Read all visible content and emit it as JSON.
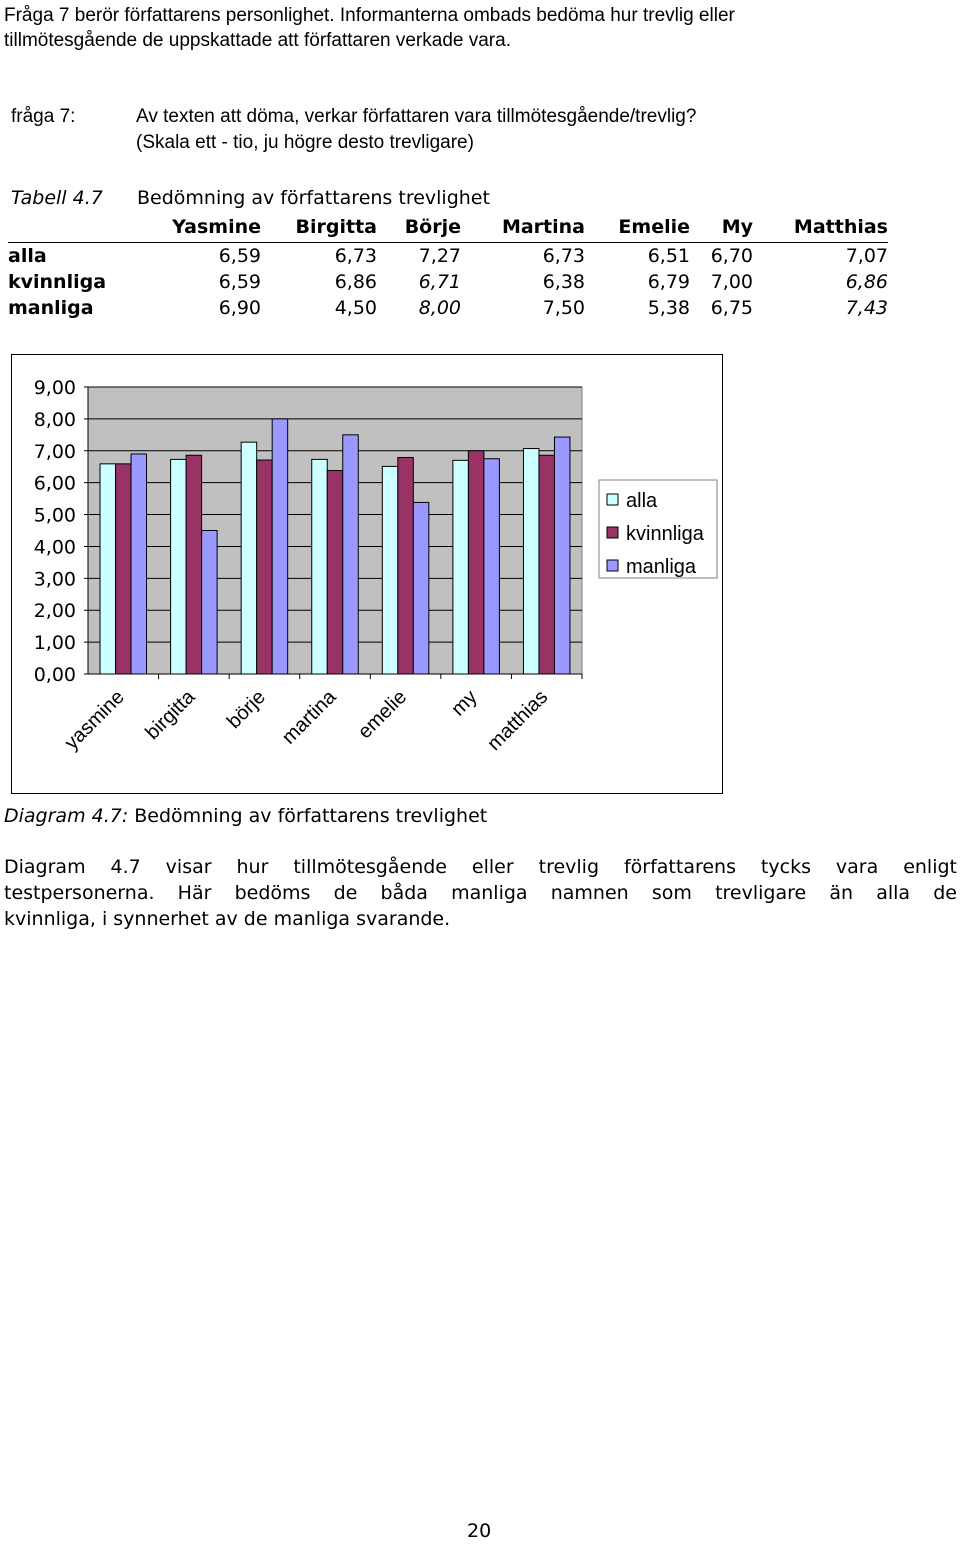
{
  "intro": {
    "line1": "Fråga 7 berör författarens personlighet. Informanterna ombads bedöma hur trevlig eller",
    "line2": "tillmötesgående de uppskattade att författaren verkade vara."
  },
  "question": {
    "label": "fråga 7:",
    "line1": "Av texten att döma, verkar författaren vara tillmötesgående/trevlig?",
    "line2": "(Skala ett - tio, ju högre desto trevligare)"
  },
  "table": {
    "label": "Tabell 4.7",
    "title": "Bedömning av författarens trevlighet",
    "headers": [
      "Yasmine",
      "Birgitta",
      "Börje",
      "Martina",
      "Emelie",
      "My",
      "Matthias"
    ],
    "rows": [
      {
        "label": "alla",
        "values": [
          "6,59",
          "6,73",
          "7,27",
          "6,73",
          "6,51",
          "6,70",
          "7,07"
        ]
      },
      {
        "label": "kvinnliga",
        "values": [
          "6,59",
          "6,86",
          "6,71",
          "6,38",
          "6,79",
          "7,00",
          "6,86"
        ]
      },
      {
        "label": "manliga",
        "values": [
          "6,90",
          "4,50",
          "8,00",
          "7,50",
          "5,38",
          "6,75",
          "7,43"
        ]
      }
    ]
  },
  "chart_data": {
    "type": "bar",
    "categories": [
      "yasmine",
      "birgitta",
      "börje",
      "martina",
      "emelie",
      "my",
      "matthias"
    ],
    "series": [
      {
        "name": "alla",
        "color": "#ccffff",
        "values": [
          6.59,
          6.73,
          7.27,
          6.73,
          6.51,
          6.7,
          7.07
        ]
      },
      {
        "name": "kvinnliga",
        "color": "#993366",
        "values": [
          6.59,
          6.86,
          6.71,
          6.38,
          6.79,
          7.0,
          6.86
        ]
      },
      {
        "name": "manliga",
        "color": "#9999ff",
        "values": [
          6.9,
          4.5,
          8.0,
          7.5,
          5.38,
          6.75,
          7.43
        ]
      }
    ],
    "yticks": [
      "0,00",
      "1,00",
      "2,00",
      "3,00",
      "4,00",
      "5,00",
      "6,00",
      "7,00",
      "8,00",
      "9,00"
    ],
    "ylim": [
      0,
      9
    ],
    "grid": true,
    "plot_background": "#c0c0c0",
    "legend_placement": "right"
  },
  "caption": {
    "label": "Diagram 4.7:",
    "text": " Bedömning av författarens trevlighet"
  },
  "body_text": {
    "line1": "Diagram 4.7 visar hur tillmötesgående eller trevlig författarens tycks vara enligt",
    "line2": "testpersonerna. Här bedöms de båda manliga namnen som trevligare än alla de",
    "line3": "kvinnliga, i synnerhet av de manliga svarande."
  },
  "page_number": "20"
}
